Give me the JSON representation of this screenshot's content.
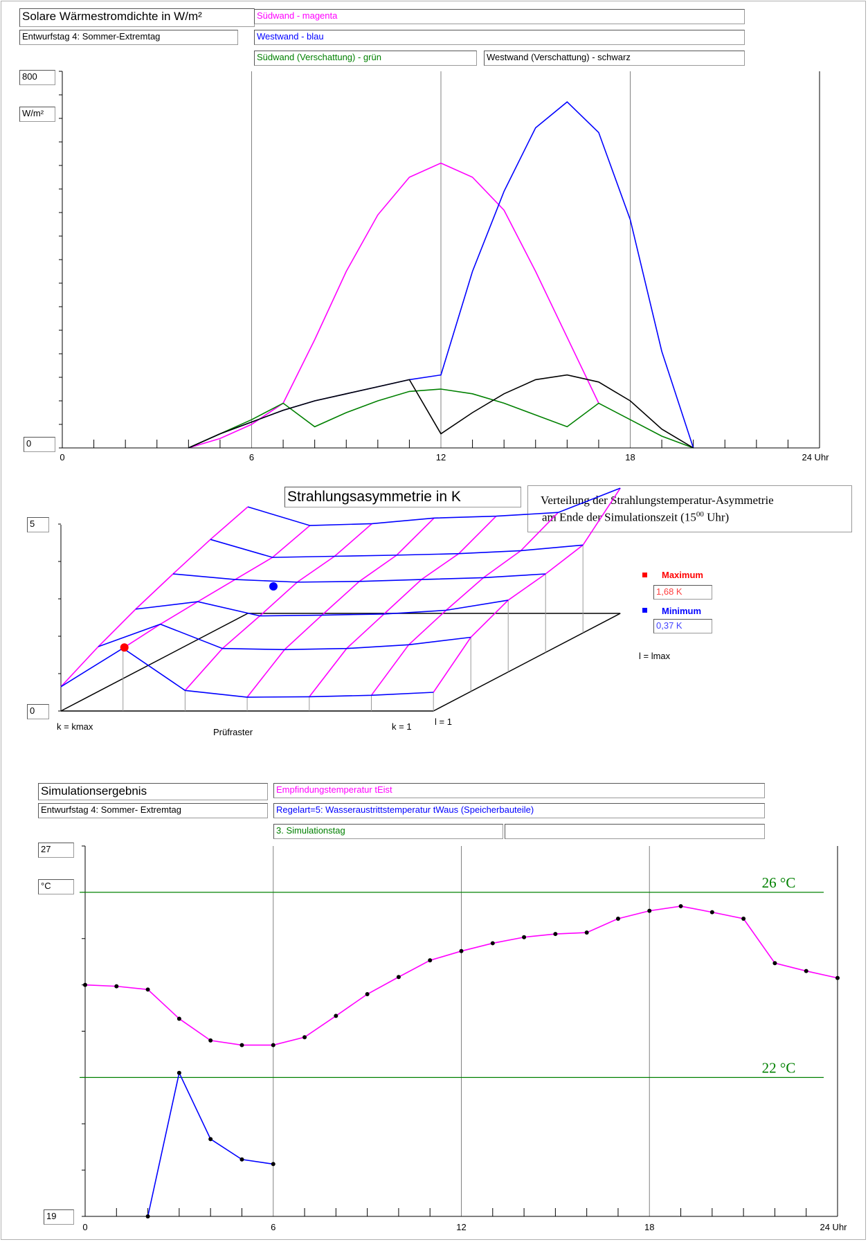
{
  "colors": {
    "magenta": "#ff00ff",
    "blue": "#0000ff",
    "green": "#008000",
    "black": "#000000",
    "red": "#ff0000",
    "grid": "#808080"
  },
  "top": {
    "title": "Solare Wärmestromdichte in W/m²",
    "subtitle": "Entwurfstag 4: Sommer-Extremtag",
    "legend": {
      "south": "Südwand - magenta",
      "west": "Westwand - blau",
      "south_shaded": "Südwand (Verschattung) - grün",
      "west_shaded": "Westwand (Verschattung) - schwarz"
    },
    "ymax_box": "800",
    "unit_box": "W/m²",
    "ymin_box": "0",
    "xticks": [
      "0",
      "6",
      "12",
      "18",
      "24 Uhr"
    ]
  },
  "middle": {
    "title": "Strahlungsasymmetrie in K",
    "note_line1": "Verteilung der Strahlungstemperatur-Asymmetrie",
    "note_line2_pre": "am Ende der Simulationszeit (15",
    "note_sup": "00",
    "note_line2_post": " Uhr)",
    "max_label": "Maximum",
    "max_value": "1,68 K",
    "min_label": "Minimum",
    "min_value": "0,37 K",
    "ymax_box": "5",
    "ymin_box": "0",
    "label_kmax": "k = kmax",
    "label_pruef": "Prüfraster",
    "label_k1": "k = 1",
    "label_l1": "l = 1",
    "label_lmax": "l = lmax"
  },
  "bottom": {
    "title": "Simulationsergebnis",
    "subtitle": "Entwurfstag 4: Sommer- Extremtag",
    "legend_magenta": "Empfindungstemperatur tEist",
    "legend_blue": "Regelart=5: Wasseraustrittstemperatur tWaus (Speicherbauteile)",
    "legend_green": "3. Simulationstag",
    "legend_empty": "",
    "ymax_box": "27",
    "unit_box": "°C",
    "ymin_box": "19",
    "ref_high": "26 °C",
    "ref_low": "22 °C",
    "xticks": [
      "0",
      "6",
      "12",
      "18",
      "24 Uhr"
    ]
  },
  "chart_data": [
    {
      "type": "line",
      "title": "Solare Wärmestromdichte in W/m²",
      "subtitle": "Entwurfstag 4: Sommer-Extremtag",
      "ylabel": "W/m²",
      "xlim": [
        0,
        24
      ],
      "ylim": [
        0,
        800
      ],
      "xticks": [
        0,
        6,
        12,
        18,
        24
      ],
      "grid": true,
      "series": [
        {
          "name": "Südwand - magenta",
          "color": "magenta",
          "x": [
            4,
            5,
            6,
            7,
            8,
            9,
            10,
            11,
            12,
            13,
            14,
            15,
            16,
            17
          ],
          "y": [
            0,
            20,
            50,
            95,
            230,
            375,
            495,
            575,
            605,
            575,
            505,
            375,
            235,
            95
          ]
        },
        {
          "name": "Westwand - blau",
          "color": "blue",
          "x": [
            4,
            5,
            6,
            7,
            8,
            9,
            10,
            11,
            12,
            13,
            14,
            15,
            16,
            17,
            18,
            19,
            20
          ],
          "y": [
            0,
            30,
            55,
            80,
            100,
            115,
            130,
            145,
            155,
            375,
            545,
            680,
            735,
            670,
            485,
            205,
            0
          ]
        },
        {
          "name": "Südwand (Verschattung) - grün",
          "color": "green",
          "x": [
            4,
            5,
            6,
            7,
            8,
            9,
            10,
            11,
            12,
            13,
            14,
            15,
            16,
            17,
            18,
            19,
            20
          ],
          "y": [
            0,
            30,
            60,
            95,
            45,
            75,
            100,
            120,
            125,
            115,
            95,
            70,
            45,
            95,
            60,
            25,
            0
          ]
        },
        {
          "name": "Westwand (Verschattung) - schwarz",
          "color": "black",
          "x": [
            4,
            5,
            6,
            7,
            8,
            9,
            10,
            11,
            12,
            13,
            14,
            15,
            16,
            17,
            18,
            19,
            20
          ],
          "y": [
            0,
            30,
            55,
            80,
            100,
            115,
            130,
            145,
            30,
            75,
            115,
            145,
            155,
            140,
            100,
            40,
            0
          ]
        }
      ]
    },
    {
      "type": "surface",
      "title": "Strahlungsasymmetrie in K",
      "ylim": [
        0,
        5
      ],
      "maximum": 1.68,
      "minimum": 0.37,
      "grid_k": 6,
      "grid_l": 5,
      "note": "Verteilung der Strahlungstemperatur-Asymmetrie am Ende der Simulationszeit (15⁰⁰ Uhr)"
    },
    {
      "type": "line",
      "title": "Simulationsergebnis",
      "subtitle": "Entwurfstag 4: Sommer- Extremtag",
      "ylabel": "°C",
      "xlim": [
        0,
        24
      ],
      "ylim": [
        19,
        27
      ],
      "xticks": [
        0,
        6,
        12,
        18,
        24
      ],
      "grid": true,
      "reference_lines": [
        {
          "y": 26,
          "label": "26 °C"
        },
        {
          "y": 22,
          "label": "22 °C"
        }
      ],
      "series": [
        {
          "name": "Empfindungstemperatur tEist",
          "color": "magenta",
          "x": [
            0,
            1,
            2,
            3,
            4,
            5,
            6,
            7,
            8,
            9,
            10,
            11,
            12,
            13,
            14,
            15,
            16,
            17,
            18,
            19,
            20,
            21,
            22,
            23,
            24
          ],
          "y": [
            24.0,
            23.97,
            23.9,
            23.27,
            22.8,
            22.7,
            22.7,
            22.87,
            23.33,
            23.8,
            24.17,
            24.53,
            24.73,
            24.9,
            25.03,
            25.1,
            25.13,
            25.43,
            25.6,
            25.7,
            25.57,
            25.43,
            24.47,
            24.3,
            24.15
          ]
        },
        {
          "name": "Regelart=5: Wasseraustrittstemperatur tWaus (Speicherbauteile)",
          "color": "blue",
          "x": [
            2,
            3,
            4,
            5,
            6
          ],
          "y": [
            19.0,
            22.1,
            20.67,
            20.23,
            20.13
          ]
        }
      ]
    }
  ]
}
